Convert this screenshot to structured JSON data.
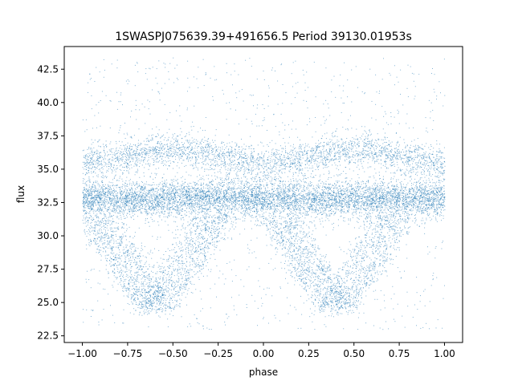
{
  "chart_data": {
    "type": "scatter",
    "title": "1SWASPJ075639.39+491656.5 Period 39130.01953s",
    "xlabel": "phase",
    "ylabel": "flux",
    "xlim": [
      -1.1,
      1.1
    ],
    "ylim": [
      22.0,
      44.2
    ],
    "xticks": [
      -1.0,
      -0.75,
      -0.5,
      -0.25,
      0.0,
      0.25,
      0.5,
      0.75,
      1.0
    ],
    "xtick_labels": [
      "−1.00",
      "−0.75",
      "−0.50",
      "−0.25",
      "0.00",
      "0.25",
      "0.50",
      "0.75",
      "1.00"
    ],
    "yticks": [
      22.5,
      25.0,
      27.5,
      30.0,
      32.5,
      35.0,
      37.5,
      40.0,
      42.5
    ],
    "ytick_labels": [
      "22.5",
      "25.0",
      "27.5",
      "30.0",
      "32.5",
      "35.0",
      "37.5",
      "40.0",
      "42.5"
    ],
    "grid": false,
    "marker_color": "#1f77b4",
    "series": [
      {
        "description_points": "dense folded light curve sampled at representative positions",
        "x": [
          -1.0,
          -0.95,
          -0.9,
          -0.85,
          -0.8,
          -0.75,
          -0.7,
          -0.65,
          -0.6,
          -0.55,
          -0.5,
          -0.45,
          -0.4,
          -0.35,
          -0.3,
          -0.25,
          -0.2,
          -0.15,
          -0.1,
          -0.05,
          0.0,
          0.05,
          0.1,
          0.15,
          0.2,
          0.25,
          0.3,
          0.35,
          0.4,
          0.45,
          0.5,
          0.55,
          0.6,
          0.65,
          0.7,
          0.75,
          0.8,
          0.85,
          0.9,
          0.95,
          1.0
        ],
        "y": [
          32.9,
          32.8,
          32.7,
          32.9,
          32.8,
          32.7,
          32.8,
          32.9,
          32.8,
          32.7,
          32.8,
          32.9,
          32.8,
          32.7,
          32.8,
          32.9,
          32.8,
          32.7,
          32.8,
          32.9,
          32.9,
          32.8,
          32.7,
          32.9,
          32.8,
          32.7,
          32.8,
          32.9,
          32.8,
          32.7,
          32.8,
          32.9,
          32.8,
          32.7,
          32.8,
          32.9,
          32.8,
          32.7,
          32.8,
          32.9,
          32.9
        ]
      }
    ]
  }
}
